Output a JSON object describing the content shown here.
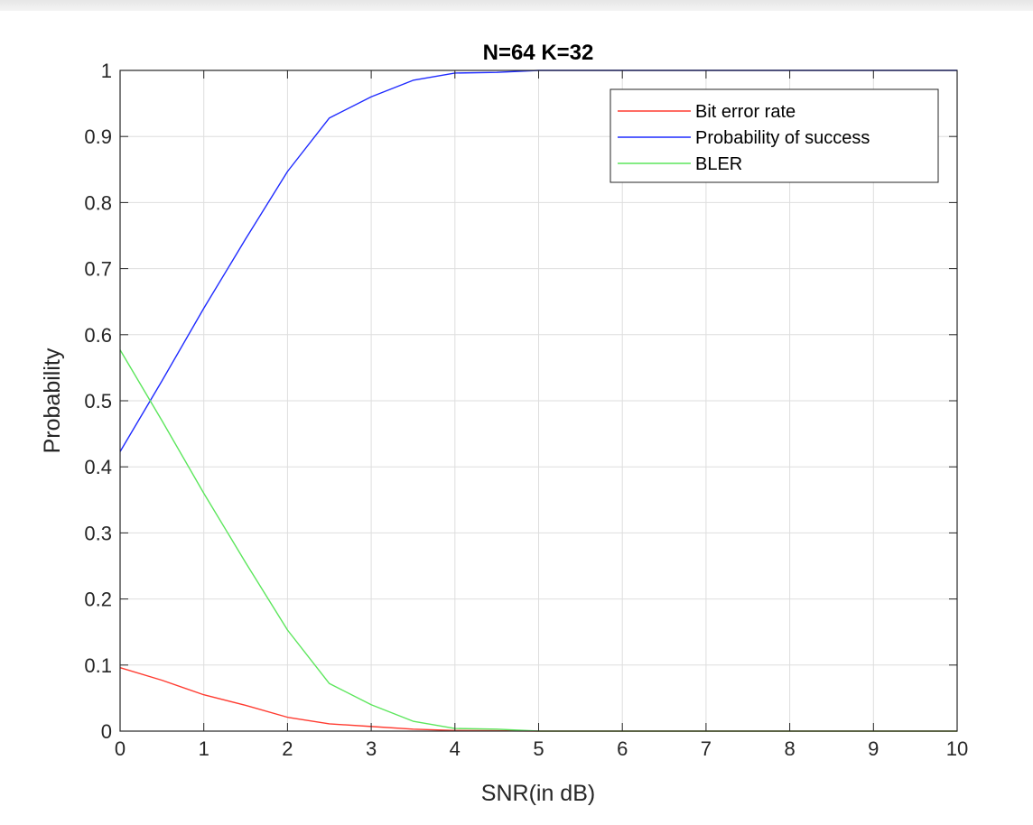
{
  "chart_data": {
    "type": "line",
    "title": "N=64 K=32",
    "xlabel": "SNR(in dB)",
    "ylabel": "Probability",
    "xlim": [
      0,
      10
    ],
    "ylim": [
      0,
      1
    ],
    "xticks": [
      0,
      1,
      2,
      3,
      4,
      5,
      6,
      7,
      8,
      9,
      10
    ],
    "xtick_labels": [
      "0",
      "1",
      "2",
      "3",
      "4",
      "5",
      "6",
      "7",
      "8",
      "9",
      "10"
    ],
    "yticks": [
      0,
      0.1,
      0.2,
      0.3,
      0.4,
      0.5,
      0.6,
      0.7,
      0.8,
      0.9,
      1
    ],
    "ytick_labels": [
      "0",
      "0.1",
      "0.2",
      "0.3",
      "0.4",
      "0.5",
      "0.6",
      "0.7",
      "0.8",
      "0.9",
      "1"
    ],
    "grid": true,
    "legend_position": "top-right",
    "x": [
      0,
      0.5,
      1,
      1.5,
      2,
      2.5,
      3,
      3.5,
      4,
      4.5,
      5,
      5.5,
      6,
      6.5,
      7,
      7.5,
      8,
      8.5,
      9,
      9.5,
      10
    ],
    "series": [
      {
        "name": "Bit error rate",
        "color": "#ff3b30",
        "values": [
          0.096,
          0.077,
          0.055,
          0.039,
          0.021,
          0.011,
          0.007,
          0.003,
          0.001,
          0.0005,
          0,
          0,
          0,
          0,
          0,
          0,
          0,
          0,
          0,
          0,
          0
        ]
      },
      {
        "name": "Probability of success",
        "color": "#1f2bff",
        "values": [
          0.423,
          0.53,
          0.64,
          0.745,
          0.847,
          0.928,
          0.96,
          0.985,
          0.996,
          0.997,
          1,
          1,
          1,
          1,
          1,
          1,
          1,
          1,
          1,
          1,
          1
        ]
      },
      {
        "name": "BLER",
        "color": "#5ce65c",
        "values": [
          0.577,
          0.47,
          0.36,
          0.255,
          0.153,
          0.072,
          0.04,
          0.015,
          0.004,
          0.003,
          0,
          0,
          0,
          0,
          0,
          0,
          0,
          0,
          0,
          0,
          0
        ]
      }
    ]
  }
}
